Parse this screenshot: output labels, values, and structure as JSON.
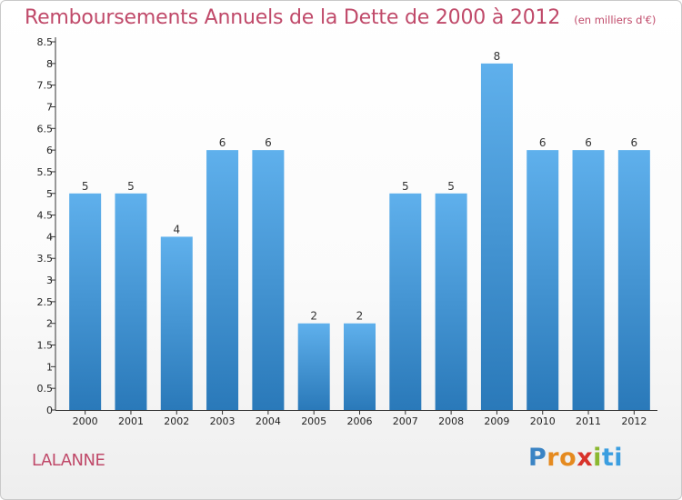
{
  "header": {
    "title": "Remboursements Annuels de la Dette de 2000 à 2012",
    "subtitle": "(en milliers d'€)"
  },
  "footer": {
    "city": "LALANNE",
    "logo": {
      "letters": [
        "P",
        "r",
        "o",
        "x",
        "i",
        "t",
        "i"
      ],
      "colors": [
        "#3b84c4",
        "#e58a1f",
        "#e58a1f",
        "#d8322a",
        "#8bb830",
        "#3b9ee0",
        "#3b9ee0"
      ]
    }
  },
  "colors": {
    "bar_top": "#5fb0ec",
    "bar_bottom": "#2a79b9",
    "axis": "#333333",
    "title": "#c04a6a"
  },
  "chart_data": {
    "type": "bar",
    "categories": [
      "2000",
      "2001",
      "2002",
      "2003",
      "2004",
      "2005",
      "2006",
      "2007",
      "2008",
      "2009",
      "2010",
      "2011",
      "2012"
    ],
    "values": [
      5,
      5,
      4,
      6,
      6,
      2,
      2,
      5,
      5,
      8,
      6,
      6,
      6
    ],
    "title": "Remboursements Annuels de la Dette de 2000 à 2012",
    "subtitle": "(en milliers d'€)",
    "xlabel": "",
    "ylabel": "",
    "ylim": [
      0,
      8.5
    ],
    "yticks": [
      "0",
      "0.5",
      "1",
      "1.5",
      "2",
      "2.5",
      "3",
      "3.5",
      "4",
      "4.5",
      "5",
      "5.5",
      "6",
      "6.5",
      "7",
      "7.5",
      "8",
      "8.5"
    ],
    "grid": false,
    "data_labels": true
  }
}
